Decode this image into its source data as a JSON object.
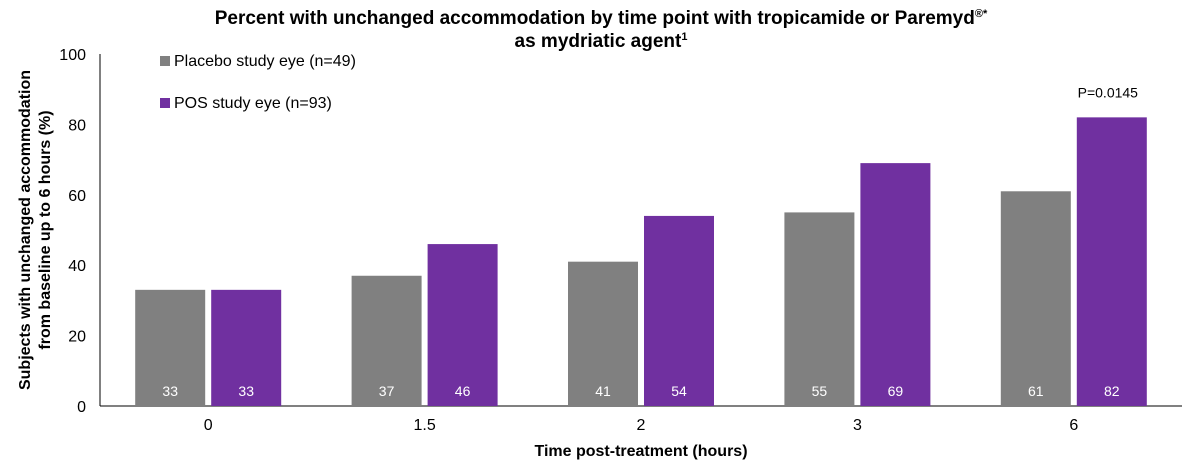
{
  "chart_data": {
    "type": "bar",
    "title_line1": "Percent with unchanged accommodation by time point with tropicamide or Paremyd",
    "title_sup1": "®*",
    "title_line2": "as mydriatic agent",
    "title_sup2": "1",
    "xlabel": "Time post-treatment (hours)",
    "ylabel_line1": "Subjects with unchanged accommodation",
    "ylabel_line2": "from baseline up to 6 hours (%)",
    "categories": [
      "0",
      "1.5",
      "2",
      "3",
      "6"
    ],
    "ylim": [
      0,
      100
    ],
    "yticks": [
      "0",
      "20",
      "40",
      "60",
      "80",
      "100"
    ],
    "grid": false,
    "legend_position": "top-left",
    "series": [
      {
        "name": "Placebo study eye (n=49)",
        "color": "#808080",
        "values": [
          33,
          37,
          41,
          55,
          61
        ],
        "labels": [
          "33",
          "37",
          "41",
          "55",
          "61"
        ]
      },
      {
        "name": "POS study eye (n=93)",
        "color": "#7030A0",
        "values": [
          33,
          46,
          54,
          69,
          82
        ],
        "labels": [
          "33",
          "46",
          "54",
          "69",
          "82"
        ]
      }
    ],
    "annotations": [
      {
        "text": "P=0.0145",
        "category_index": 4,
        "series_index": 1
      }
    ]
  }
}
